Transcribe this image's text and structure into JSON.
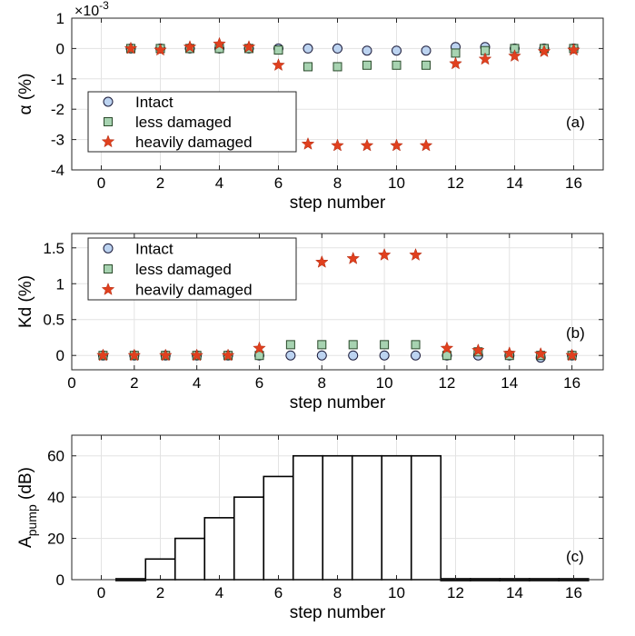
{
  "chart_data": [
    {
      "type": "scatter",
      "panel_label": "(a)",
      "exponent_label": "×10",
      "exponent_power": "-3",
      "xlabel": "step number",
      "ylabel": "α (%)",
      "xlim": [
        -1,
        17
      ],
      "ylim": [
        -4,
        1
      ],
      "x_ticks": [
        0,
        2,
        4,
        6,
        8,
        10,
        12,
        14,
        16
      ],
      "x_tick_labels": [
        "0",
        "2",
        "4",
        "6",
        "8",
        "10",
        "12",
        "14",
        "16"
      ],
      "y_ticks": [
        -4,
        -3,
        -2,
        -1,
        0,
        1
      ],
      "y_tick_labels": [
        "-4",
        "-3",
        "-2",
        "-1",
        "0",
        "1"
      ],
      "grid": true,
      "legend_position": "middle-left",
      "series": [
        {
          "name": "Intact",
          "marker": "circle",
          "color": "#bcd3f0",
          "x": [
            1,
            2,
            3,
            4,
            5,
            6,
            7,
            8,
            9,
            10,
            11,
            12,
            13,
            14,
            15,
            16
          ],
          "y": [
            0,
            0,
            0,
            0,
            0,
            0,
            0,
            0,
            -0.07,
            -0.07,
            -0.07,
            0.05,
            0.05,
            0,
            0,
            0
          ]
        },
        {
          "name": "less damaged",
          "marker": "square",
          "color": "#a7d3b1",
          "x": [
            1,
            2,
            3,
            4,
            5,
            6,
            7,
            8,
            9,
            10,
            11,
            12,
            13,
            14,
            15,
            16
          ],
          "y": [
            0,
            0,
            0,
            0,
            0,
            -0.05,
            -0.6,
            -0.6,
            -0.55,
            -0.55,
            -0.55,
            -0.15,
            -0.07,
            0,
            0,
            0
          ]
        },
        {
          "name": "heavily damaged",
          "marker": "star",
          "color": "#e0401e",
          "x": [
            1,
            2,
            3,
            4,
            5,
            6,
            7,
            8,
            9,
            10,
            11,
            12,
            13,
            14,
            15,
            16
          ],
          "y": [
            0,
            -0.05,
            0.05,
            0.15,
            0.05,
            -0.55,
            -3.15,
            -3.2,
            -3.2,
            -3.2,
            -3.2,
            -0.5,
            -0.35,
            -0.25,
            -0.1,
            -0.05
          ]
        }
      ]
    },
    {
      "type": "scatter",
      "panel_label": "(b)",
      "xlabel": "step number",
      "ylabel": "Kd (%)",
      "xlim": [
        0,
        17
      ],
      "ylim": [
        -0.2,
        1.7
      ],
      "x_ticks": [
        0,
        2,
        4,
        6,
        8,
        10,
        12,
        14,
        16
      ],
      "x_tick_labels": [
        "0",
        "2",
        "4",
        "6",
        "8",
        "10",
        "12",
        "14",
        "16"
      ],
      "y_ticks": [
        0,
        0.5,
        1,
        1.5
      ],
      "y_tick_labels": [
        "0",
        "0.5",
        "1",
        "1.5"
      ],
      "grid": true,
      "legend_position": "top-left",
      "series": [
        {
          "name": "Intact",
          "marker": "circle",
          "color": "#bcd3f0",
          "x": [
            1,
            2,
            3,
            4,
            5,
            6,
            7,
            8,
            9,
            10,
            11,
            12,
            13,
            14,
            15,
            16
          ],
          "y": [
            0,
            0,
            0,
            0,
            0,
            0,
            0,
            0,
            0,
            0,
            0,
            0,
            0,
            0,
            -0.03,
            0
          ]
        },
        {
          "name": "less damaged",
          "marker": "square",
          "color": "#a7d3b1",
          "x": [
            1,
            2,
            3,
            4,
            5,
            6,
            7,
            8,
            9,
            10,
            11,
            12,
            13,
            14,
            15,
            16
          ],
          "y": [
            0,
            0,
            0,
            0,
            0,
            0,
            0.15,
            0.15,
            0.15,
            0.15,
            0.15,
            0,
            0.05,
            0,
            0,
            0
          ]
        },
        {
          "name": "heavily damaged",
          "marker": "star",
          "color": "#e0401e",
          "x": [
            1,
            2,
            3,
            4,
            5,
            6,
            7,
            8,
            9,
            10,
            11,
            12,
            13,
            14,
            15,
            16
          ],
          "y": [
            0,
            0,
            0,
            0,
            0,
            0.1,
            1.25,
            1.3,
            1.35,
            1.4,
            1.4,
            0.1,
            0.07,
            0.03,
            0.02,
            0
          ]
        }
      ]
    },
    {
      "type": "bar",
      "panel_label": "(c)",
      "xlabel": "step number",
      "ylabel_main": "A",
      "ylabel_sub": "pump",
      "ylabel_suffix": " (dB)",
      "xlim": [
        -1,
        17
      ],
      "ylim": [
        0,
        70
      ],
      "x_ticks": [
        0,
        2,
        4,
        6,
        8,
        10,
        12,
        14,
        16
      ],
      "x_tick_labels": [
        "0",
        "2",
        "4",
        "6",
        "8",
        "10",
        "12",
        "14",
        "16"
      ],
      "y_ticks": [
        0,
        20,
        40,
        60
      ],
      "y_tick_labels": [
        "0",
        "20",
        "40",
        "60"
      ],
      "grid": true,
      "x": [
        1,
        2,
        3,
        4,
        5,
        6,
        7,
        8,
        9,
        10,
        11,
        12,
        13,
        14,
        15,
        16
      ],
      "values": [
        0,
        10,
        20,
        30,
        40,
        50,
        60,
        60,
        60,
        60,
        60,
        0,
        0,
        0,
        0,
        0
      ]
    }
  ]
}
